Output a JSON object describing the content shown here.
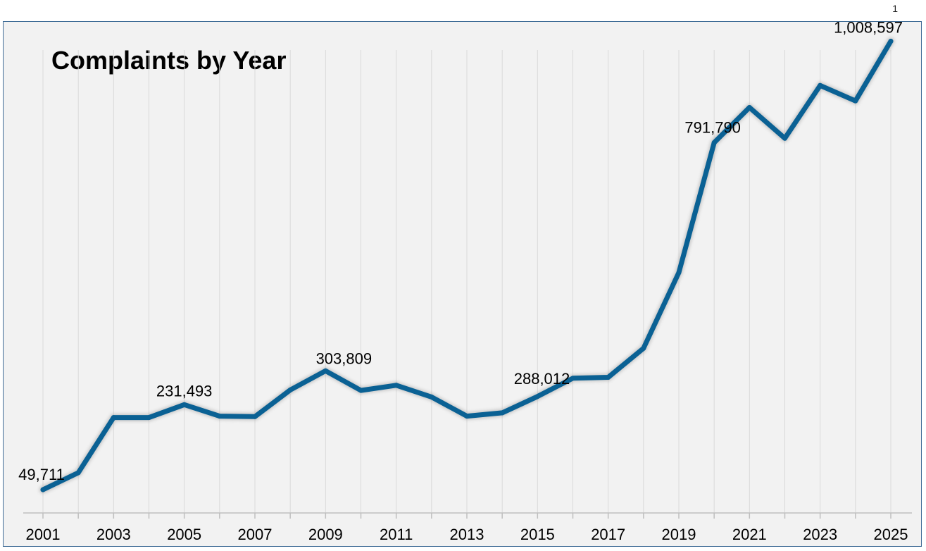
{
  "page_number": "1",
  "chart_data": {
    "type": "line",
    "title": "Complaints by Year",
    "xlabel": "",
    "ylabel": "",
    "x": [
      2001,
      2002,
      2003,
      2004,
      2005,
      2006,
      2007,
      2008,
      2009,
      2010,
      2011,
      2012,
      2013,
      2014,
      2015,
      2016,
      2017,
      2018,
      2019,
      2020,
      2021,
      2022,
      2023,
      2024,
      2025
    ],
    "x_tick_labels": [
      "2001",
      "2003",
      "2005",
      "2007",
      "2009",
      "2011",
      "2013",
      "2015",
      "2017",
      "2019",
      "2021",
      "2023",
      "2025"
    ],
    "series": [
      {
        "name": "",
        "color": "#0a6194",
        "values": [
          49711,
          86000,
          204000,
          204000,
          231493,
          207000,
          206000,
          263000,
          303809,
          262000,
          273000,
          248000,
          207000,
          214000,
          249000,
          288012,
          290000,
          352000,
          514000,
          791790,
          867000,
          801000,
          914000,
          881000,
          1008597
        ]
      }
    ],
    "data_labels": [
      {
        "x": 2001,
        "text": "49,711"
      },
      {
        "x": 2005,
        "text": "231,493"
      },
      {
        "x": 2009,
        "text": "303,809"
      },
      {
        "x": 2016,
        "text": "288,012"
      },
      {
        "x": 2020,
        "text": "791,790"
      },
      {
        "x": 2025,
        "text": "1,008,597"
      }
    ],
    "ylim": [
      0,
      1050000
    ],
    "grid": "vertical",
    "legend": "none"
  }
}
